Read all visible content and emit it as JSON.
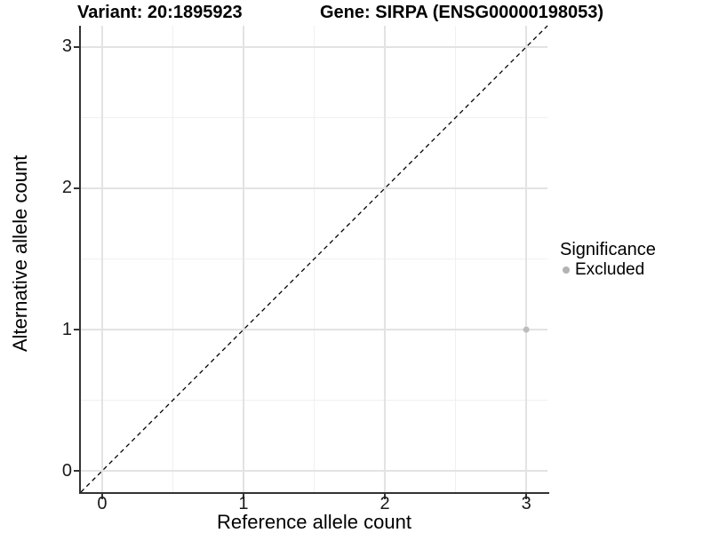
{
  "chart_data": {
    "type": "scatter",
    "title_variant": "Variant: 20:1895923",
    "title_gene": "Gene: SIRPA (ENSG00000198053)",
    "xlabel": "Reference allele count",
    "ylabel": "Alternative allele count",
    "xlim": [
      -0.15,
      3.15
    ],
    "ylim": [
      -0.15,
      3.15
    ],
    "x_tick_values": [
      0,
      1,
      2,
      3
    ],
    "y_tick_values": [
      0,
      1,
      2,
      3
    ],
    "x_tick_labels": [
      "0",
      "1",
      "2",
      "3"
    ],
    "y_tick_labels": [
      "0",
      "1",
      "2",
      "3"
    ],
    "minor_grid_values": [
      0.5,
      1.5,
      2.5
    ],
    "grid": "major and minor, light gray, on white background",
    "identity_line": {
      "type": "y=x",
      "style": "dashed",
      "color": "#000000",
      "from": [
        -0.15,
        -0.15
      ],
      "to": [
        3.15,
        3.15
      ]
    },
    "points": [
      {
        "x": 3,
        "y": 1,
        "significance": "Excluded"
      }
    ],
    "point_color": "#bdbdbd",
    "legend": {
      "title": "Significance",
      "position": "right",
      "items": [
        {
          "label": "Excluded",
          "color": "#b3b3b3",
          "marker": "circle"
        }
      ]
    }
  },
  "colors": {
    "background": "#ffffff",
    "grid_major": "#e3e3e3",
    "grid_minor": "#f0f0f0",
    "axis_line": "#333333",
    "tick_text": "#1a1a1a",
    "title_text": "#000000",
    "point": "#bdbdbd",
    "legend_dot": "#b3b3b3",
    "dashed_line": "#000000"
  }
}
